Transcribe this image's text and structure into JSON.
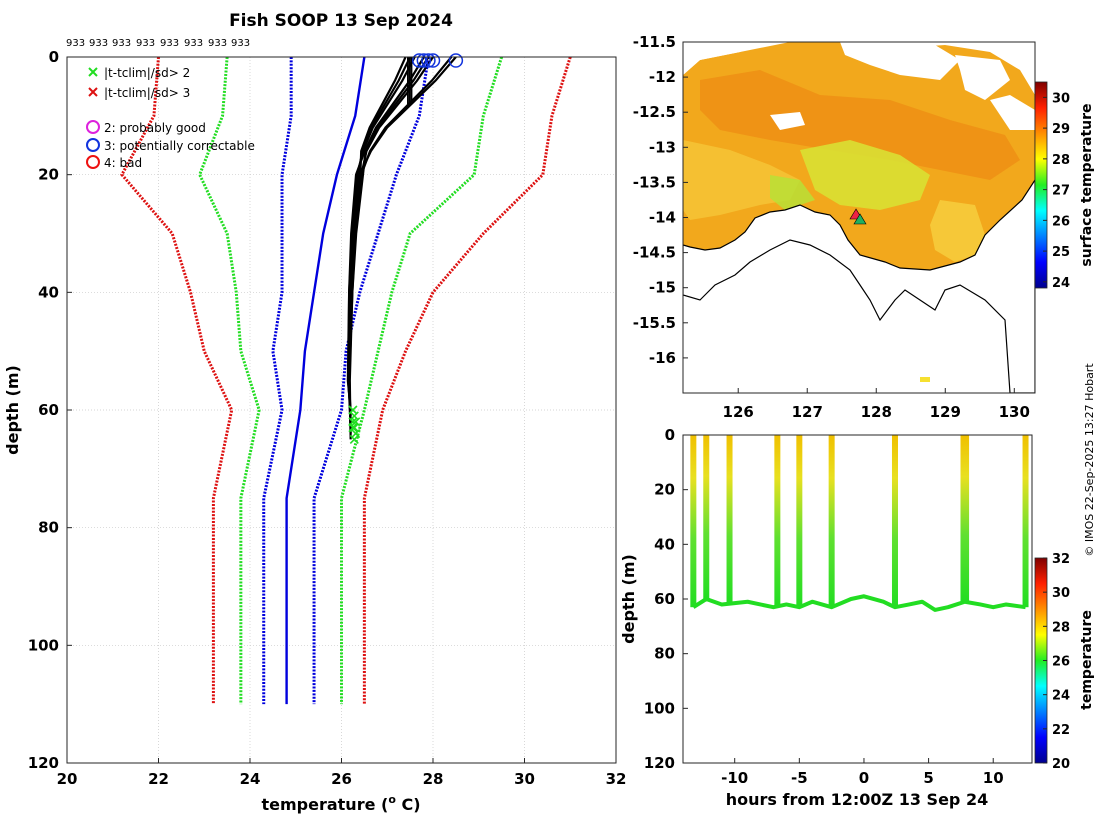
{
  "figure": {
    "title": "Fish SOOP 13 Sep 2024",
    "station_labels": [
      "933",
      "933",
      "933",
      "933",
      "933",
      "933",
      "933",
      "933"
    ],
    "watermark": "© IMOS 22-Sep-2025 13:27 Hobart"
  },
  "colors": {
    "profile": "#000000",
    "clim_mean": "#0000dd",
    "sd2": "#22dd22",
    "sd3": "#dd1111",
    "flag_good": "#dd22dd",
    "flag_corr": "#1133dd",
    "flag_bad": "#ee1111",
    "land": "#ffffff",
    "coast": "#000000",
    "ship_marker": "#ee2244"
  },
  "legend": {
    "entries": [
      {
        "symbol": "x",
        "color": "#22dd22",
        "label": "|t-tclim|/sd> 2"
      },
      {
        "symbol": "x",
        "color": "#dd1111",
        "label": "|t-tclim|/sd> 3"
      },
      {
        "symbol": "o",
        "color": "#dd22dd",
        "label": "2: probably good"
      },
      {
        "symbol": "o",
        "color": "#1133dd",
        "label": "3: potentially correctable"
      },
      {
        "symbol": "o",
        "color": "#ee1111",
        "label": "4: bad"
      }
    ]
  },
  "chart_data": [
    {
      "type": "line",
      "id": "profile",
      "xlabel": "temperature (",
      "xlabel_sup": "o",
      "xlabel_tail": " C)",
      "ylabel": "depth (m)",
      "xlim": [
        20,
        32
      ],
      "ylim": [
        120,
        0
      ],
      "xticks": [
        20,
        22,
        24,
        26,
        28,
        30,
        32
      ],
      "yticks": [
        0,
        20,
        40,
        60,
        80,
        100,
        120
      ],
      "grid": true,
      "climatology": {
        "depth": [
          0,
          10,
          20,
          30,
          40,
          50,
          60,
          75,
          110
        ],
        "mean": [
          26.5,
          26.3,
          25.9,
          25.6,
          25.4,
          25.2,
          25.1,
          24.8,
          24.8
        ],
        "lines": [
          {
            "name": "mean-3sd",
            "kind": "sd3",
            "temps": [
              22.0,
              21.9,
              21.2,
              22.3,
              22.7,
              23.0,
              23.6,
              23.2,
              23.2
            ]
          },
          {
            "name": "mean-2sd",
            "kind": "sd2",
            "temps": [
              23.5,
              23.4,
              22.9,
              23.5,
              23.7,
              23.8,
              24.2,
              23.8,
              23.8
            ]
          },
          {
            "name": "mean-1sd",
            "kind": "sd1",
            "temps": [
              24.9,
              24.9,
              24.7,
              24.7,
              24.7,
              24.5,
              24.7,
              24.3,
              24.3
            ]
          },
          {
            "name": "mean",
            "kind": "mean",
            "temps": [
              26.5,
              26.3,
              25.9,
              25.6,
              25.4,
              25.2,
              25.1,
              24.8,
              24.8
            ]
          },
          {
            "name": "mean+1sd",
            "kind": "sd1",
            "temps": [
              27.9,
              27.7,
              27.2,
              26.8,
              26.4,
              26.1,
              26.0,
              25.4,
              25.4
            ]
          },
          {
            "name": "mean+2sd",
            "kind": "sd2",
            "temps": [
              29.5,
              29.1,
              28.9,
              27.5,
              27.1,
              26.8,
              26.5,
              26.0,
              26.0
            ]
          },
          {
            "name": "mean+3sd",
            "kind": "sd3",
            "temps": [
              31.0,
              30.6,
              30.4,
              29.1,
              28.0,
              27.4,
              26.9,
              26.5,
              26.5
            ]
          }
        ]
      },
      "profiles": [
        {
          "surface_temp": 28.5,
          "max_depth": 60
        },
        {
          "surface_temp": 28.4,
          "max_depth": 61
        },
        {
          "surface_temp": 28.0,
          "max_depth": 62
        },
        {
          "surface_temp": 27.9,
          "max_depth": 62
        },
        {
          "surface_temp": 27.8,
          "max_depth": 63
        },
        {
          "surface_temp": 27.6,
          "max_depth": 64
        },
        {
          "surface_temp": 27.5,
          "max_depth": 63
        },
        {
          "surface_temp": 27.4,
          "max_depth": 65
        }
      ],
      "qc_circles_temps": [
        28.5,
        28.0,
        27.9,
        27.8,
        27.7
      ]
    },
    {
      "type": "heatmap",
      "id": "sst-map",
      "xlim": [
        125.2,
        130.3
      ],
      "ylim": [
        -16.5,
        -11.5
      ],
      "xticks": [
        126,
        127,
        128,
        129,
        130
      ],
      "yticks": [
        -11.5,
        -12,
        -12.5,
        -13,
        -13.5,
        -14,
        -14.5,
        -15,
        -15.5,
        -16
      ],
      "colorbar": {
        "label": "surface temperature",
        "range": [
          23.8,
          30.5
        ],
        "ticks": [
          24,
          25,
          26,
          27,
          28,
          29,
          30
        ]
      },
      "ship_position": {
        "lon": 127.75,
        "lat": -13.95
      }
    },
    {
      "type": "scatter",
      "id": "section",
      "xlabel": "hours from 12:00Z 13 Sep 24",
      "ylabel": "depth (m)",
      "xlim": [
        -14,
        13
      ],
      "ylim": [
        120,
        0
      ],
      "xticks": [
        -10,
        -5,
        0,
        5,
        10
      ],
      "yticks": [
        0,
        20,
        40,
        60,
        80,
        100,
        120
      ],
      "cast_times": [
        -13.2,
        -12.2,
        -10.4,
        -6.7,
        -5.0,
        -2.5,
        2.4,
        7.7,
        7.9,
        12.5
      ],
      "bottom_depth_series": {
        "hours": [
          -13.2,
          -12.2,
          -11,
          -9,
          -7,
          -6,
          -5,
          -4,
          -2.5,
          -1,
          0,
          1.5,
          2.4,
          3.5,
          4.5,
          5.5,
          6.5,
          7.8,
          9,
          10,
          11,
          12.5
        ],
        "depth": [
          63,
          60,
          62,
          61,
          63,
          62,
          63,
          61,
          63,
          60,
          59,
          61,
          63,
          62,
          61,
          64,
          63,
          61,
          62,
          63,
          62,
          63
        ]
      },
      "colorbar": {
        "label": "temperature",
        "range": [
          20,
          32
        ],
        "ticks": [
          20,
          22,
          24,
          26,
          28,
          30,
          32
        ]
      }
    }
  ]
}
